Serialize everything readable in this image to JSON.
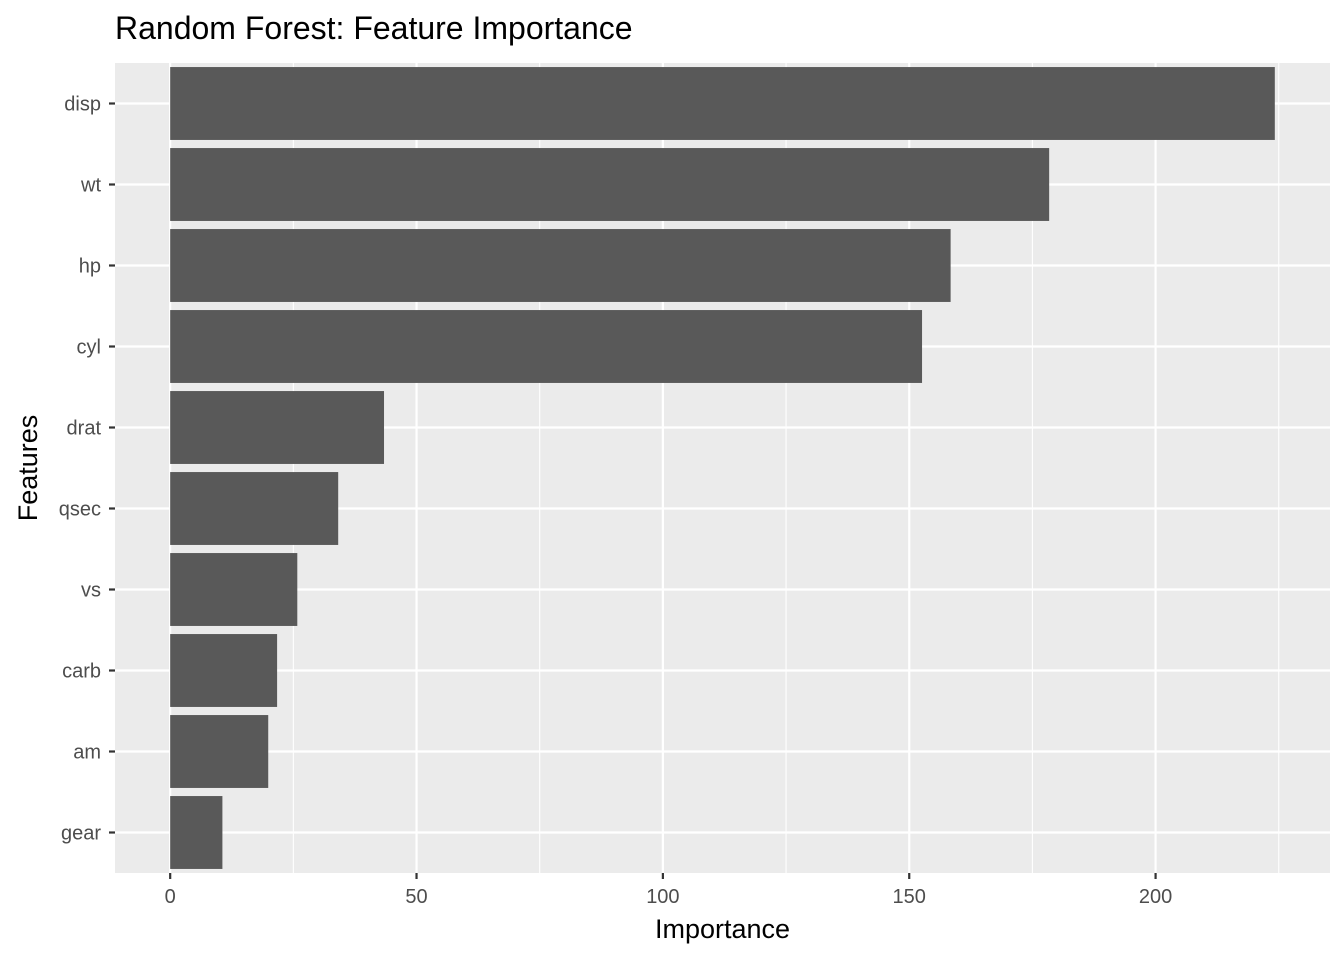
{
  "chart_data": {
    "type": "bar",
    "orientation": "horizontal",
    "title": "Random Forest: Feature Importance",
    "xlabel": "Importance",
    "ylabel": "Features",
    "categories": [
      "disp",
      "wt",
      "hp",
      "cyl",
      "drat",
      "qsec",
      "vs",
      "carb",
      "am",
      "gear"
    ],
    "values": [
      224.2,
      178.4,
      158.4,
      152.6,
      43.4,
      34.1,
      25.8,
      21.7,
      19.9,
      10.6
    ],
    "xlim": [
      -11.2,
      235.4
    ],
    "xticks": [
      0,
      50,
      100,
      150,
      200
    ],
    "grid": true,
    "colors": {
      "bar": "#595959",
      "panel": "#ebebeb",
      "grid_major": "#ffffff",
      "tick_text": "#4d4d4d"
    }
  }
}
